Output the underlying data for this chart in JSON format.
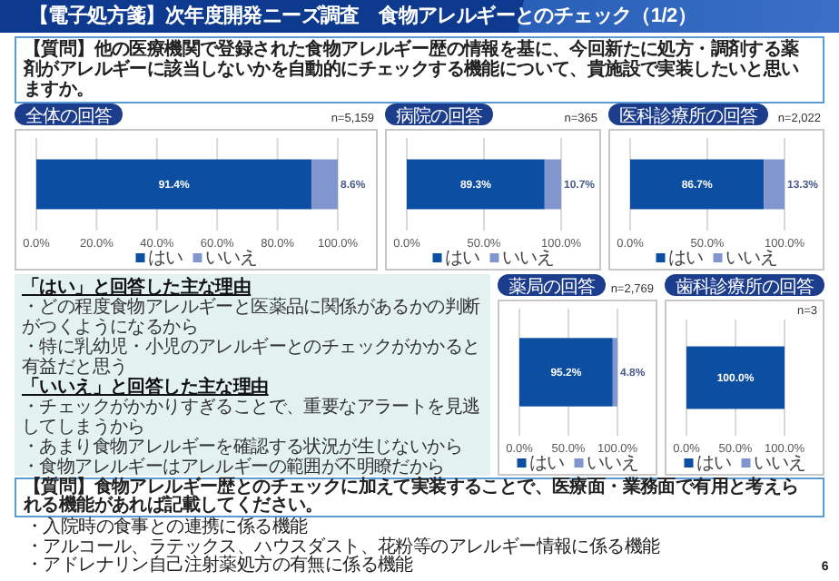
{
  "chart_data": [
    {
      "type": "other",
      "title": "【電子処方箋】次年度開発ニーズ調査　食物アレルギーとのチェック（1/2）",
      "annotations": [
        "【質問】他の医療機関で登録された食物アレルギー歴の情報を基に、今回新たに処方・調剤する薬剤がアレルギーに該当しないかを自動的にチェックする機能について、貴施設で実装したいと思いますか。"
      ]
    },
    {
      "type": "bar",
      "orientation": "horizontal",
      "stacked": true,
      "title": "全体の回答",
      "annotations": [
        "n=5,159"
      ],
      "categories": [
        null
      ],
      "series": [
        {
          "name": "はい",
          "color": "#0b4ea2",
          "values": [
            91.4
          ],
          "value_labels": [
            "91.4%"
          ]
        },
        {
          "name": "いいえ",
          "color": "#8196cf",
          "values": [
            8.6
          ],
          "value_labels": [
            "8.6%"
          ]
        }
      ],
      "xlim": [
        0,
        100
      ],
      "xticks": [
        {
          "value": 0,
          "label": "0.0%"
        },
        {
          "value": 20,
          "label": "20.0%"
        },
        {
          "value": 40,
          "label": "40.0%"
        },
        {
          "value": 60,
          "label": "60.0%"
        },
        {
          "value": 80,
          "label": "80.0%"
        },
        {
          "value": 100,
          "label": "100.0%"
        }
      ],
      "grid": "x",
      "legend": "bottom"
    },
    {
      "type": "bar",
      "orientation": "horizontal",
      "stacked": true,
      "title": "病院の回答",
      "annotations": [
        "n=365"
      ],
      "categories": [
        null
      ],
      "series": [
        {
          "name": "はい",
          "color": "#0b4ea2",
          "values": [
            89.3
          ],
          "value_labels": [
            "89.3%"
          ]
        },
        {
          "name": "いいえ",
          "color": "#8196cf",
          "values": [
            10.7
          ],
          "value_labels": [
            "10.7%"
          ]
        }
      ],
      "xlim": [
        0,
        100
      ],
      "xticks": [
        {
          "value": 0,
          "label": "0.0%"
        },
        {
          "value": 50,
          "label": "50.0%"
        },
        {
          "value": 100,
          "label": "100.0%"
        }
      ],
      "grid": "x",
      "legend": "bottom"
    },
    {
      "type": "bar",
      "orientation": "horizontal",
      "stacked": true,
      "title": "医科診療所の回答",
      "annotations": [
        "n=2,022"
      ],
      "categories": [
        null
      ],
      "series": [
        {
          "name": "はい",
          "color": "#0b4ea2",
          "values": [
            86.7
          ],
          "value_labels": [
            "86.7%"
          ]
        },
        {
          "name": "いいえ",
          "color": "#8196cf",
          "values": [
            13.3
          ],
          "value_labels": [
            "13.3%"
          ]
        }
      ],
      "xlim": [
        0,
        100
      ],
      "xticks": [
        {
          "value": 0,
          "label": "0.0%"
        },
        {
          "value": 50,
          "label": "50.0%"
        },
        {
          "value": 100,
          "label": "100.0%"
        }
      ],
      "grid": "x",
      "legend": "bottom"
    },
    {
      "type": "other",
      "annotations": [
        "「はい」と回答した主な理由",
        "・どの程度食物アレルギーと医薬品に関係があるかの判断がつくようになるから",
        "・特に乳幼児・小児のアレルギーとのチェックがかかると有益だと思う",
        "「いいえ」と回答した主な理由",
        "・チェックがかかりすぎることで、重要なアラートを見逃してしまうから",
        "・あまり食物アレルギーを確認する状況が生じないから",
        "・食物アレルギーはアレルギーの範囲が不明瞭だから"
      ]
    },
    {
      "type": "bar",
      "orientation": "horizontal",
      "stacked": true,
      "title": "薬局の回答",
      "annotations": [
        "n=2,769"
      ],
      "categories": [
        null
      ],
      "series": [
        {
          "name": "はい",
          "color": "#0b4ea2",
          "values": [
            95.2
          ],
          "value_labels": [
            "95.2%"
          ]
        },
        {
          "name": "いいえ",
          "color": "#8196cf",
          "values": [
            4.8
          ],
          "value_labels": [
            "4.8%"
          ]
        }
      ],
      "xlim": [
        0,
        100
      ],
      "xticks": [
        {
          "value": 0,
          "label": "0.0%"
        },
        {
          "value": 50,
          "label": "50.0%"
        },
        {
          "value": 100,
          "label": "100.0%"
        }
      ],
      "grid": "x",
      "legend": "bottom"
    },
    {
      "type": "bar",
      "orientation": "horizontal",
      "stacked": true,
      "title": "歯科診療所の回答",
      "annotations": [
        "n=3"
      ],
      "categories": [
        null
      ],
      "series": [
        {
          "name": "はい",
          "color": "#0b4ea2",
          "values": [
            100.0
          ],
          "value_labels": [
            "100.0%"
          ]
        },
        {
          "name": "いいえ",
          "color": "#8196cf",
          "values": [
            0
          ],
          "value_labels": [
            null
          ]
        }
      ],
      "xlim": [
        0,
        100
      ],
      "xticks": [
        {
          "value": 0,
          "label": "0.0%"
        },
        {
          "value": 50,
          "label": "50.0%"
        },
        {
          "value": 100,
          "label": "100.0%"
        }
      ],
      "grid": "x",
      "legend": "bottom"
    },
    {
      "type": "other",
      "title": "【質問】食物アレルギー歴とのチェックに加えて実装することで、医療面・業務面で有用と考えられる機能があれば記載してください。",
      "annotations": [
        "・入院時の食事との連携に係る機能",
        "・アルコール、ラテックス、ハウスダスト、花粉等のアレルギー情報に係る機能",
        "・アドレナリン自己注射薬処方の有無に係る機能",
        "6"
      ]
    }
  ]
}
